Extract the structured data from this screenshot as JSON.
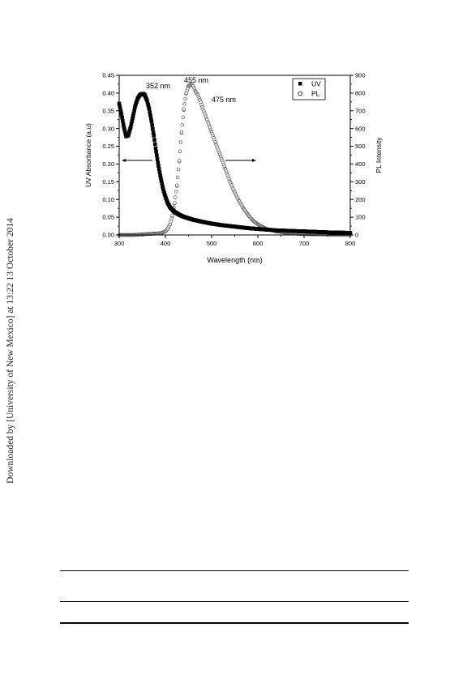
{
  "watermark": "Downloaded by [University of New Mexico] at 13:22 13 October 2014",
  "chart_data": {
    "type": "scatter",
    "title": "",
    "xlabel": "Wavelength (nm)",
    "ylabel_left": "UV Absorbance (a.u)",
    "ylabel_right": "PL Intensity",
    "xlim": [
      300,
      800
    ],
    "ylim_left": [
      0,
      0.45
    ],
    "ylim_right": [
      0,
      900
    ],
    "x_ticks": [
      300,
      400,
      500,
      600,
      700,
      800
    ],
    "y_left_ticks": [
      0.0,
      0.05,
      0.1,
      0.15,
      0.2,
      0.25,
      0.3,
      0.35,
      0.4,
      0.45
    ],
    "y_right_ticks": [
      0,
      100,
      200,
      300,
      400,
      500,
      600,
      700,
      800,
      900
    ],
    "legend_position": "top-right",
    "grid": false,
    "annotations": [
      "352 nm",
      "455 nm",
      "475 nm"
    ],
    "series": [
      {
        "name": "UV",
        "marker": "filled-square",
        "axis": "left",
        "x": [
          300,
          305,
          310,
          315,
          320,
          325,
          330,
          335,
          340,
          345,
          350,
          352,
          355,
          360,
          365,
          370,
          375,
          380,
          385,
          390,
          395,
          400,
          405,
          410,
          420,
          430,
          440,
          450,
          460,
          480,
          500,
          520,
          540,
          560,
          580,
          600,
          620,
          640,
          660,
          680,
          700,
          720,
          740,
          760,
          780,
          800
        ],
        "y": [
          0.37,
          0.34,
          0.305,
          0.278,
          0.282,
          0.305,
          0.335,
          0.365,
          0.385,
          0.395,
          0.398,
          0.398,
          0.395,
          0.38,
          0.355,
          0.32,
          0.28,
          0.235,
          0.195,
          0.16,
          0.13,
          0.108,
          0.09,
          0.078,
          0.065,
          0.057,
          0.051,
          0.047,
          0.043,
          0.037,
          0.032,
          0.028,
          0.025,
          0.022,
          0.019,
          0.017,
          0.015,
          0.013,
          0.012,
          0.011,
          0.01,
          0.009,
          0.008,
          0.007,
          0.0065,
          0.006
        ]
      },
      {
        "name": "PL",
        "marker": "open-circle",
        "axis": "right",
        "x": [
          300,
          330,
          360,
          380,
          390,
          400,
          405,
          410,
          415,
          420,
          425,
          430,
          435,
          440,
          445,
          450,
          455,
          460,
          465,
          470,
          475,
          480,
          490,
          500,
          510,
          520,
          530,
          540,
          550,
          560,
          570,
          580,
          590,
          600,
          610,
          620,
          640,
          660,
          680,
          700,
          720,
          740,
          760,
          780,
          800
        ],
        "y": [
          0,
          0,
          5,
          8,
          10,
          20,
          35,
          60,
          110,
          180,
          280,
          420,
          580,
          710,
          800,
          840,
          850,
          840,
          810,
          790,
          760,
          720,
          650,
          580,
          510,
          440,
          370,
          300,
          240,
          190,
          145,
          110,
          80,
          60,
          45,
          33,
          20,
          12,
          8,
          5,
          4,
          3,
          2,
          2,
          1
        ]
      }
    ]
  }
}
